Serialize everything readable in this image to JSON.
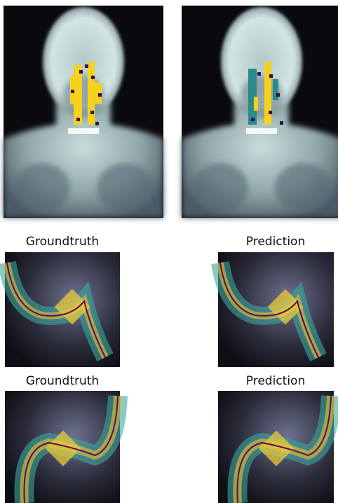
{
  "rows": [
    {
      "left_title": "Groundtruth",
      "right_title": "Prediction"
    },
    {
      "left_title": "Groundtruth",
      "right_title": "Prediction"
    }
  ]
}
